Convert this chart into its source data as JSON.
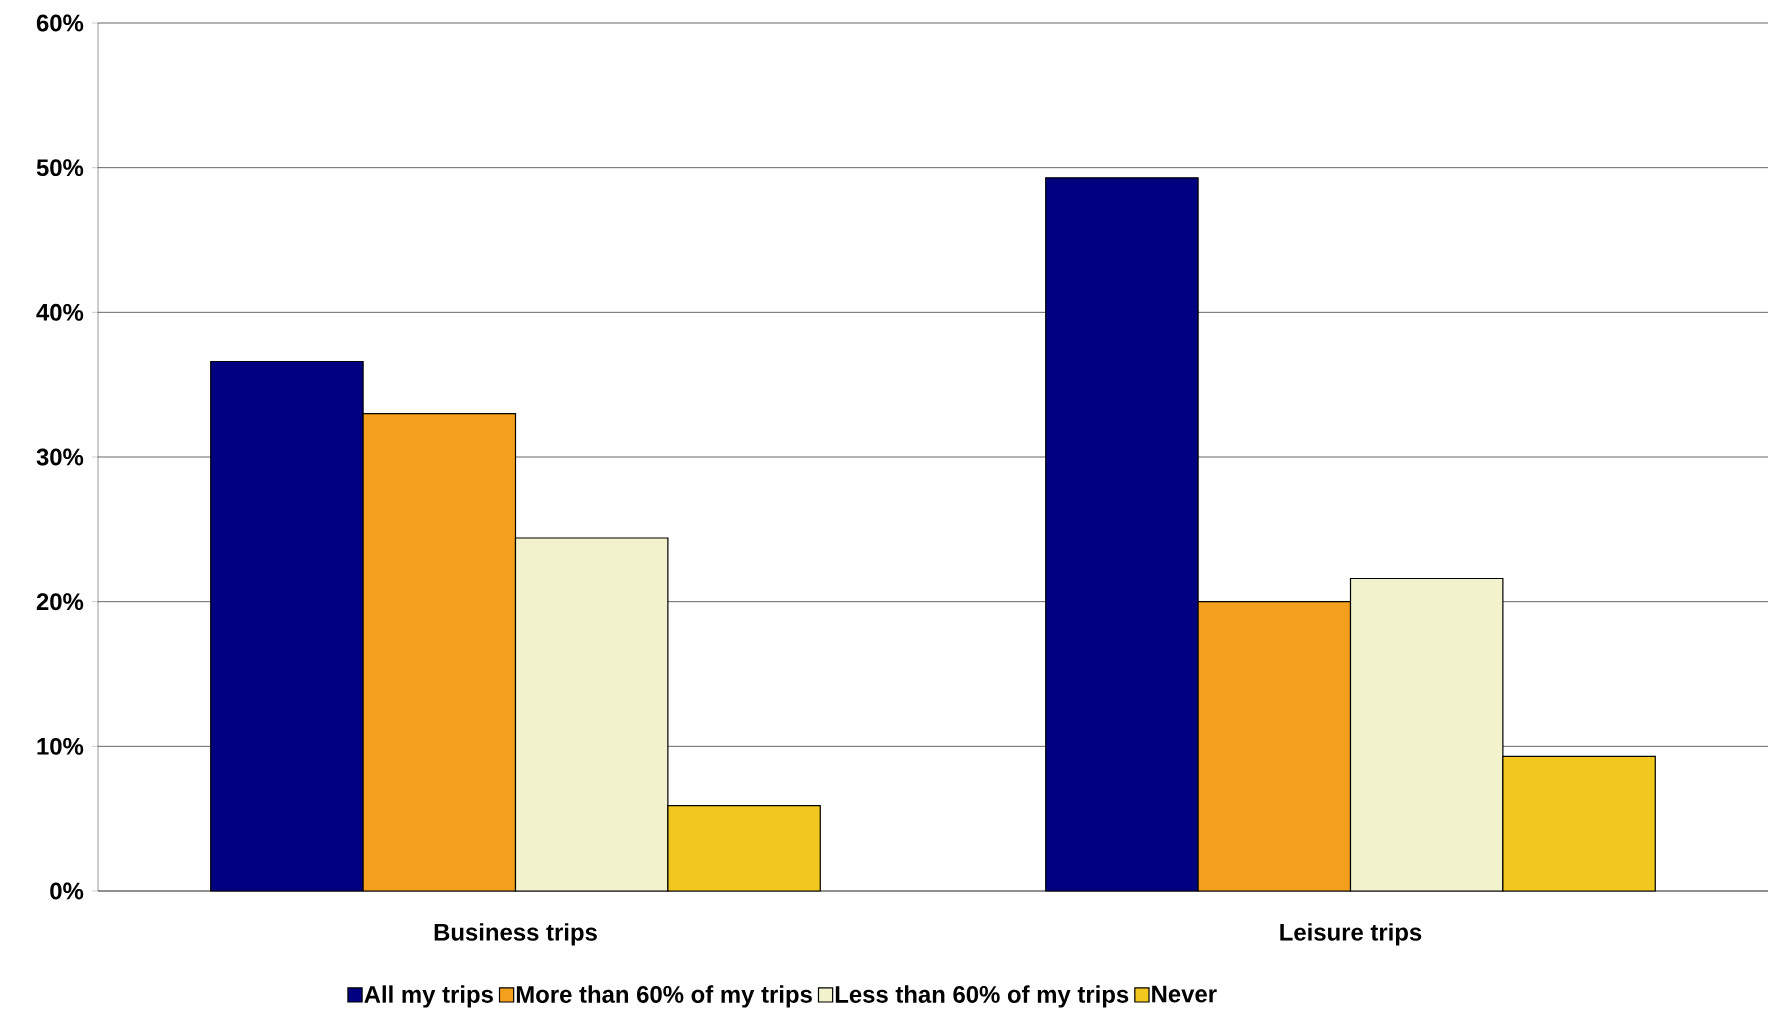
{
  "chart_data": {
    "type": "bar",
    "categories": [
      "Business trips",
      "Leisure trips"
    ],
    "series": [
      {
        "name": "All my trips",
        "color": "#000080",
        "values": [
          36.6,
          49.3
        ]
      },
      {
        "name": "More than 60% of my trips",
        "color": "#f5a01c",
        "values": [
          33.0,
          20.0
        ]
      },
      {
        "name": "Less than 60% of my trips",
        "color": "#f2f2cc",
        "values": [
          24.4,
          21.6
        ]
      },
      {
        "name": "Never",
        "color": "#f2c81e",
        "values": [
          5.9,
          9.3
        ]
      }
    ],
    "ylim": [
      0,
      60
    ],
    "yticks": [
      {
        "value": 0,
        "label": "0%"
      },
      {
        "value": 10,
        "label": "10%"
      },
      {
        "value": 20,
        "label": "20%"
      },
      {
        "value": 30,
        "label": "30%"
      },
      {
        "value": 40,
        "label": "40%"
      },
      {
        "value": 50,
        "label": "50%"
      },
      {
        "value": 60,
        "label": "60%"
      }
    ],
    "grid": "y",
    "legend": "bottom"
  }
}
